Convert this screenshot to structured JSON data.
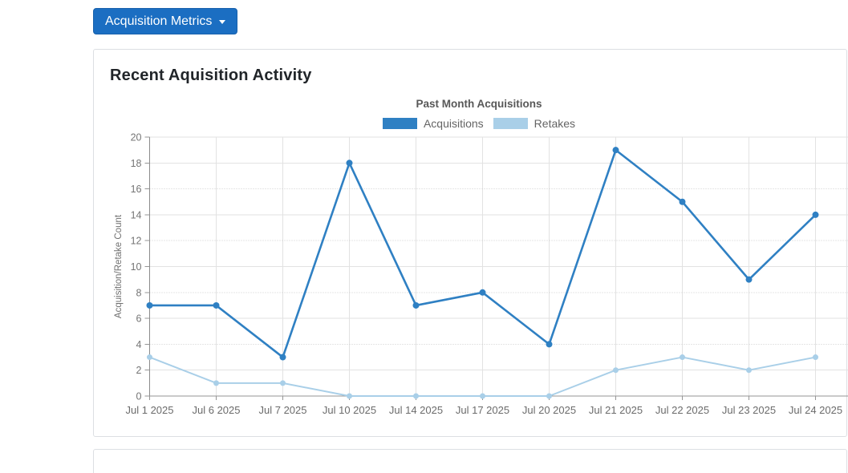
{
  "toolbar": {
    "dropdown_label": "Acquisition Metrics"
  },
  "card": {
    "title": "Recent Aquisition Activity"
  },
  "chart_data": {
    "type": "line",
    "title": "Past Month Acquisitions",
    "xlabel": "",
    "ylabel": "Acquisition/Retake Count",
    "ylim": [
      0,
      20
    ],
    "y_interval": 2,
    "grid": true,
    "legend_position": "top",
    "categories": [
      "Jul 1 2025",
      "Jul 6 2025",
      "Jul 7 2025",
      "Jul 10 2025",
      "Jul 14 2025",
      "Jul 17 2025",
      "Jul 20 2025",
      "Jul 21 2025",
      "Jul 22 2025",
      "Jul 23 2025",
      "Jul 24 2025"
    ],
    "series": [
      {
        "name": "Acquisitions",
        "color": "#2f80c3",
        "values": [
          7,
          7,
          3,
          18,
          7,
          8,
          4,
          19,
          15,
          9,
          14
        ]
      },
      {
        "name": "Retakes",
        "color": "#a9cfe8",
        "values": [
          3,
          1,
          1,
          0,
          0,
          0,
          0,
          2,
          3,
          2,
          3
        ]
      }
    ]
  },
  "colors": {
    "button_bg": "#1b6ec2",
    "grid_solid": "#e2e2e2",
    "grid_dotted": "#cccccc",
    "axis_line": "#959595",
    "tick_text": "#757575",
    "x_tick_text": "#6b6b6b",
    "axis_title_text": "#707070"
  }
}
